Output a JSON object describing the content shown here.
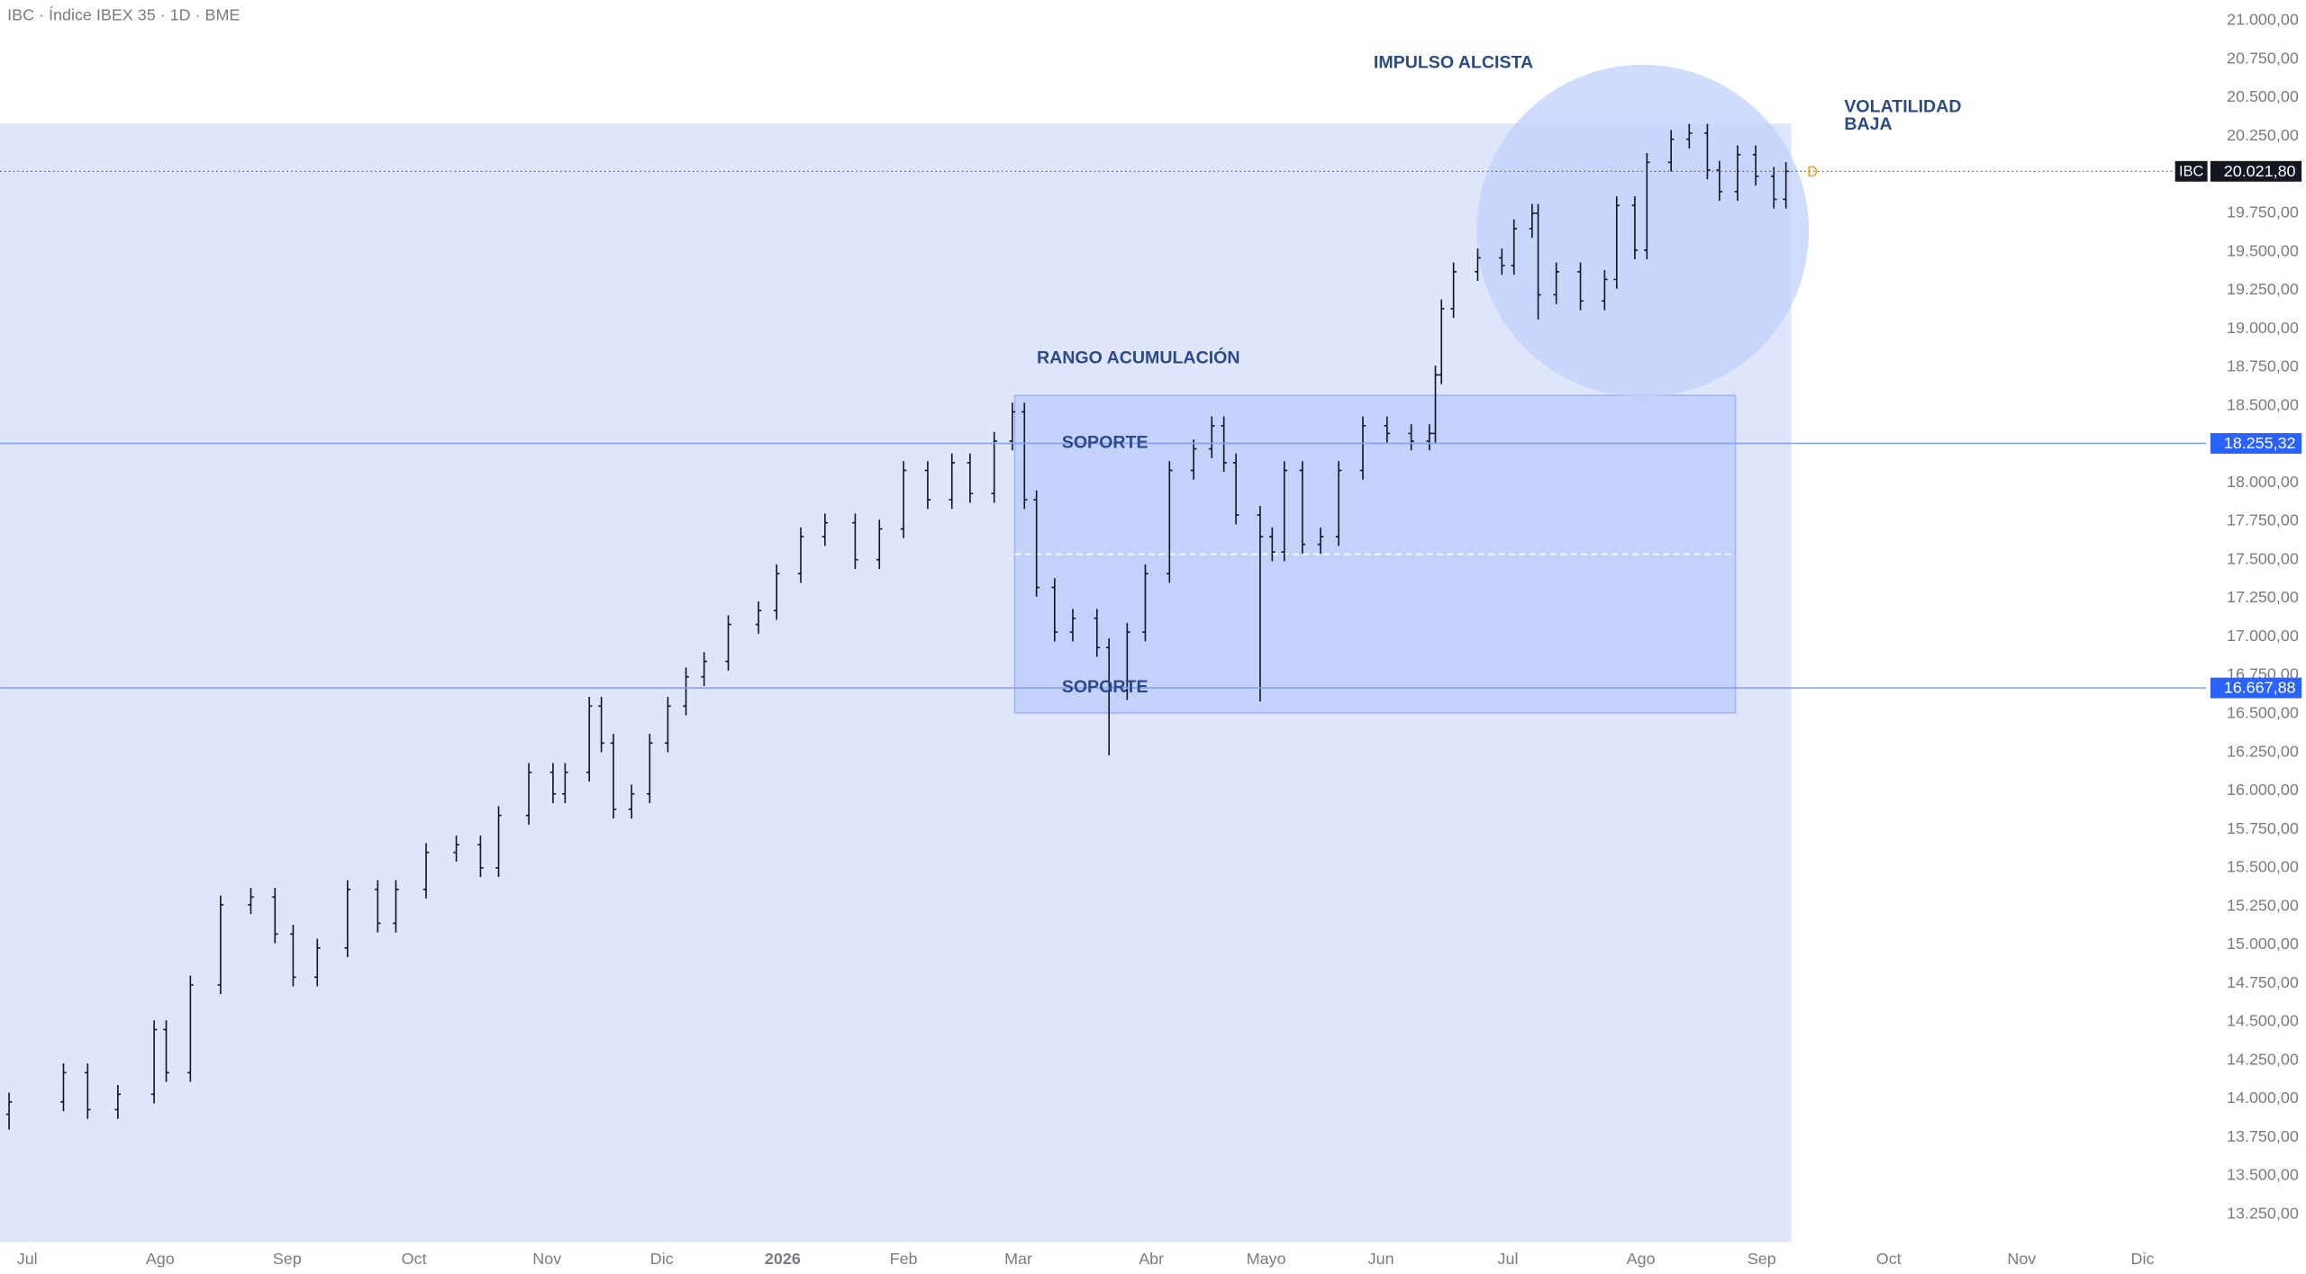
{
  "chart_data": {
    "type": "ohlc",
    "title": "IBC · Índice IBEX 35 · 1D · BME",
    "series": [
      {
        "name": "IBC",
        "color": "#131722",
        "x": [
          1,
          10,
          14,
          19,
          25,
          27,
          31,
          36,
          41,
          45,
          48,
          52,
          57,
          62,
          65,
          70,
          75,
          79,
          82,
          87,
          91,
          93,
          97,
          99,
          101,
          104,
          107,
          110,
          113,
          116,
          120,
          125,
          128,
          132,
          136,
          141,
          145,
          149,
          153,
          157,
          160,
          164,
          167,
          169,
          171,
          174,
          177,
          181,
          183,
          186,
          189,
          193,
          197,
          200,
          202,
          204,
          208,
          210,
          212,
          215,
          218,
          221,
          225,
          229,
          233,
          236,
          237,
          238,
          240,
          244,
          248,
          250,
          253,
          254,
          257,
          261,
          265,
          267,
          270,
          272,
          276,
          279,
          282,
          284,
          287,
          290,
          293,
          295
        ],
        "open": [
          13900,
          13980,
          14170,
          13930,
          14030,
          14450,
          14170,
          14740,
          15260,
          15310,
          15070,
          14790,
          14980,
          15360,
          15140,
          15360,
          15600,
          15650,
          15500,
          15840,
          16120,
          15980,
          16120,
          16550,
          16310,
          15880,
          15980,
          16310,
          16550,
          16740,
          16840,
          17080,
          17170,
          17410,
          17650,
          17740,
          17500,
          17700,
          18080,
          17890,
          18130,
          17930,
          18270,
          18460,
          17890,
          17320,
          17030,
          17120,
          16930,
          16650,
          17030,
          17410,
          18080,
          18220,
          18370,
          18130,
          17790,
          17650,
          17550,
          18080,
          17600,
          17650,
          18080,
          18370,
          18320,
          18270,
          18320,
          18700,
          19130,
          19370,
          19460,
          19410,
          19650,
          19750,
          19220,
          19370,
          19180,
          19320,
          19800,
          19510,
          20080,
          20230,
          20270,
          20030,
          19890,
          20130,
          19990,
          19840
        ],
        "high": [
          14040,
          14230,
          14230,
          14090,
          14510,
          14510,
          14800,
          15320,
          15370,
          15370,
          15130,
          15040,
          15420,
          15420,
          15420,
          15660,
          15710,
          15710,
          15900,
          16180,
          16180,
          16180,
          16610,
          16610,
          16370,
          16040,
          16370,
          16610,
          16800,
          16900,
          17140,
          17230,
          17470,
          17710,
          17800,
          17800,
          17760,
          18140,
          18140,
          18190,
          18190,
          18330,
          18520,
          18520,
          17950,
          17380,
          17180,
          17180,
          16990,
          17090,
          17470,
          18140,
          18280,
          18430,
          18430,
          18190,
          17850,
          17710,
          18140,
          18140,
          17710,
          18140,
          18430,
          18430,
          18380,
          18380,
          18760,
          19190,
          19430,
          19520,
          19520,
          19710,
          19810,
          19810,
          19430,
          19430,
          19380,
          19860,
          19860,
          20140,
          20290,
          20330,
          20330,
          20090,
          20190,
          20190,
          20050,
          20081.8
        ],
        "low": [
          13800,
          13920,
          13870,
          13870,
          13970,
          14110,
          14110,
          14680,
          15200,
          15010,
          14730,
          14730,
          14920,
          15080,
          15080,
          15300,
          15540,
          15440,
          15440,
          15780,
          15920,
          15920,
          16060,
          16250,
          15820,
          15820,
          15920,
          16250,
          16490,
          16680,
          16780,
          17020,
          17110,
          17350,
          17590,
          17440,
          17440,
          17640,
          17830,
          17830,
          17870,
          17870,
          18210,
          17830,
          17260,
          16970,
          16970,
          16870,
          16230,
          16590,
          16970,
          17350,
          18020,
          18160,
          18070,
          17730,
          16580,
          17490,
          17490,
          17540,
          17540,
          17590,
          18020,
          18260,
          18210,
          18210,
          18260,
          18640,
          19070,
          19310,
          19350,
          19350,
          19590,
          19060,
          19160,
          19120,
          19120,
          19260,
          19450,
          19450,
          20020,
          20170,
          19970,
          19830,
          19830,
          19930,
          19780,
          19780
        ],
        "close": [
          13980,
          14170,
          13930,
          14030,
          14450,
          14170,
          14740,
          15260,
          15310,
          15070,
          14790,
          14980,
          15360,
          15140,
          15360,
          15600,
          15650,
          15500,
          15840,
          16120,
          15980,
          16120,
          16550,
          16310,
          15880,
          15980,
          16310,
          16550,
          16740,
          16840,
          17080,
          17170,
          17410,
          17650,
          17740,
          17500,
          17700,
          18080,
          17890,
          18130,
          17930,
          18270,
          18460,
          17890,
          17320,
          17030,
          17120,
          16930,
          16650,
          17030,
          17410,
          18080,
          18220,
          18370,
          18130,
          17790,
          17650,
          17550,
          18080,
          17600,
          17650,
          18080,
          18370,
          18320,
          18270,
          18320,
          18700,
          19130,
          19370,
          19460,
          19410,
          19650,
          19750,
          19220,
          19370,
          19180,
          19320,
          19800,
          19510,
          20080,
          20230,
          20270,
          20030,
          19890,
          20130,
          19990,
          19840,
          20021.8
        ]
      }
    ],
    "last_price_label": "20.021,80",
    "marker": "D",
    "levels": [
      {
        "value": 18255.32,
        "label": "18.255,32",
        "text": "SOPORTE"
      },
      {
        "value": 16667.88,
        "label": "16.667,88",
        "text": "SOPORTE"
      }
    ],
    "annotations": {
      "impulse": "IMPULSO ALCISTA",
      "range": "RANGO ACUMULACIÓN",
      "volatility": [
        "VOLATILIDAD",
        "BAJA"
      ]
    },
    "xlim": [
      -0.5,
      364.5
    ],
    "xticks": [
      {
        "value": 4,
        "label": "Jul"
      },
      {
        "value": 26,
        "label": "Ago"
      },
      {
        "value": 47,
        "label": "Sep"
      },
      {
        "value": 68,
        "label": "Oct"
      },
      {
        "value": 90,
        "label": "Nov"
      },
      {
        "value": 109,
        "label": "Dic"
      },
      {
        "value": 129,
        "label": "2026"
      },
      {
        "value": 149,
        "label": "Feb"
      },
      {
        "value": 168,
        "label": "Mar"
      },
      {
        "value": 190,
        "label": "Abr"
      },
      {
        "value": 209,
        "label": "Mayo"
      },
      {
        "value": 228,
        "label": "Jun"
      },
      {
        "value": 249,
        "label": "Jul"
      },
      {
        "value": 271,
        "label": "Ago"
      },
      {
        "value": 291,
        "label": "Sep"
      },
      {
        "value": 312,
        "label": "Oct"
      },
      {
        "value": 334,
        "label": "Nov"
      },
      {
        "value": 354,
        "label": "Dic"
      }
    ],
    "ylim": [
      13070,
      21134
    ],
    "yticks": [
      {
        "value": 13250,
        "label": "13.250,00"
      },
      {
        "value": 13500,
        "label": "13.500,00"
      },
      {
        "value": 13750,
        "label": "13.750,00"
      },
      {
        "value": 14000,
        "label": "14.000,00"
      },
      {
        "value": 14250,
        "label": "14.250,00"
      },
      {
        "value": 14500,
        "label": "14.500,00"
      },
      {
        "value": 14750,
        "label": "14.750,00"
      },
      {
        "value": 15000,
        "label": "15.000,00"
      },
      {
        "value": 15250,
        "label": "15.250,00"
      },
      {
        "value": 15500,
        "label": "15.500,00"
      },
      {
        "value": 15750,
        "label": "15.750,00"
      },
      {
        "value": 16000,
        "label": "16.000,00"
      },
      {
        "value": 16250,
        "label": "16.250,00"
      },
      {
        "value": 16500,
        "label": "16.500,00"
      },
      {
        "value": 16750,
        "label": "16.750,00"
      },
      {
        "value": 17000,
        "label": "17.000,00"
      },
      {
        "value": 17250,
        "label": "17.250,00"
      },
      {
        "value": 17500,
        "label": "17.500,00"
      },
      {
        "value": 17750,
        "label": "17.750,00"
      },
      {
        "value": 18000,
        "label": "18.000,00"
      },
      {
        "value": 18250,
        "label": "18.250,00"
      },
      {
        "value": 18500,
        "label": "18.500,00"
      },
      {
        "value": 18750,
        "label": "18.750,00"
      },
      {
        "value": 19000,
        "label": "19.000,00"
      },
      {
        "value": 19250,
        "label": "19.250,00"
      },
      {
        "value": 19500,
        "label": "19.500,00"
      },
      {
        "value": 19750,
        "label": "19.750,00"
      },
      {
        "value": 20000,
        "label": "20.000,00"
      },
      {
        "value": 20250,
        "label": "20.250,00"
      },
      {
        "value": 20500,
        "label": "20.500,00"
      },
      {
        "value": 20750,
        "label": "20.750,00"
      },
      {
        "value": 21000,
        "label": "21.000,00"
      }
    ],
    "grid": false
  }
}
